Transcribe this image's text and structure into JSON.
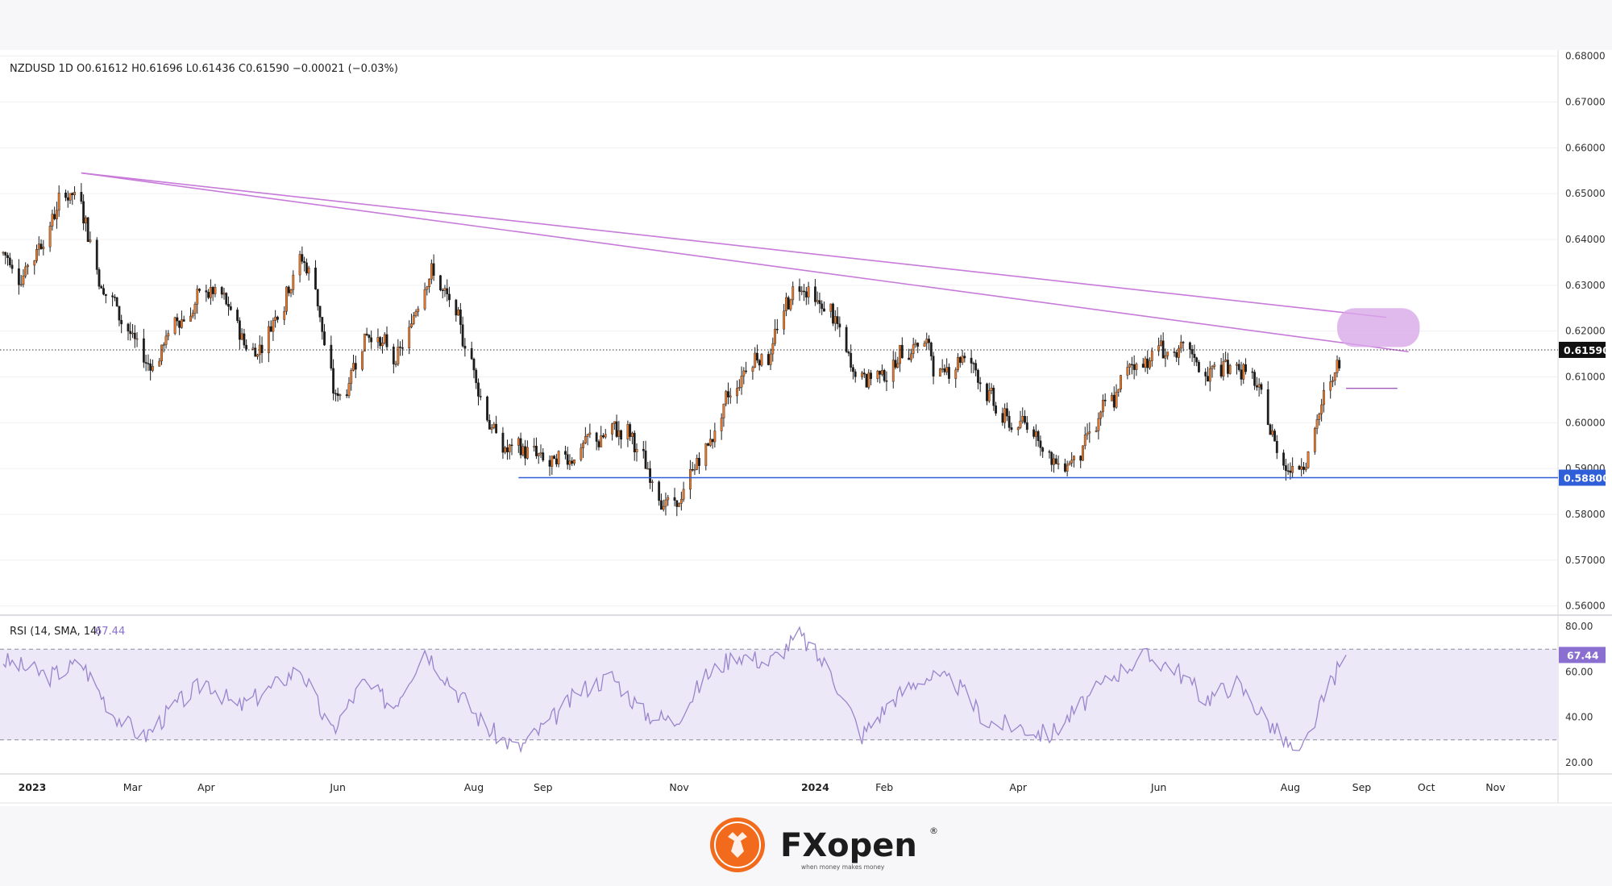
{
  "header": {
    "symbol": "NZDUSD",
    "interval": "1D",
    "open": "O0.61612",
    "high": "H0.61696",
    "low": "L0.61436",
    "close": "C0.61590",
    "change": "−0.00021 (−0.03%)"
  },
  "colors": {
    "up": "#e8782a",
    "down": "#1c1c1c",
    "trendline": "#c77ad9",
    "zone_fill": "#d9a6e8",
    "support": "#2f5ed9",
    "rsi_line": "#9a84cc",
    "rsi_band": "#ece8f8",
    "logo_orange": "#f26a1b"
  },
  "chart_data": {
    "type": "candlestick",
    "y_axis": {
      "ticks": [
        "0.68000",
        "0.67000",
        "0.66000",
        "0.65000",
        "0.64000",
        "0.63000",
        "0.62000",
        "0.61000",
        "0.60000",
        "0.59000",
        "0.58000",
        "0.57000",
        "0.56000"
      ],
      "ylim": [
        0.558,
        0.681
      ]
    },
    "x_axis": {
      "labels": [
        "2023",
        "Mar",
        "Apr",
        "Jun",
        "Aug",
        "Sep",
        "Nov",
        "2024",
        "Feb",
        "Apr",
        "Jun",
        "Aug",
        "Sep",
        "Oct",
        "Nov"
      ],
      "bold_labels": [
        "2023",
        "2024"
      ]
    },
    "price_path": [
      [
        "2023-01-02",
        0.637
      ],
      [
        "2023-01-09",
        0.632
      ],
      [
        "2023-01-16",
        0.638
      ],
      [
        "2023-01-23",
        0.645
      ],
      [
        "2023-01-30",
        0.651
      ],
      [
        "2023-02-06",
        0.647
      ],
      [
        "2023-02-13",
        0.631
      ],
      [
        "2023-02-20",
        0.626
      ],
      [
        "2023-02-27",
        0.619
      ],
      [
        "2023-03-06",
        0.612
      ],
      [
        "2023-03-13",
        0.616
      ],
      [
        "2023-03-20",
        0.623
      ],
      [
        "2023-03-27",
        0.625
      ],
      [
        "2023-04-03",
        0.629
      ],
      [
        "2023-04-10",
        0.626
      ],
      [
        "2023-04-17",
        0.619
      ],
      [
        "2023-04-24",
        0.615
      ],
      [
        "2023-05-01",
        0.622
      ],
      [
        "2023-05-08",
        0.63
      ],
      [
        "2023-05-15",
        0.637
      ],
      [
        "2023-05-22",
        0.628
      ],
      [
        "2023-05-29",
        0.603
      ],
      [
        "2023-06-05",
        0.609
      ],
      [
        "2023-06-12",
        0.621
      ],
      [
        "2023-06-19",
        0.618
      ],
      [
        "2023-06-26",
        0.612
      ],
      [
        "2023-07-03",
        0.621
      ],
      [
        "2023-07-10",
        0.636
      ],
      [
        "2023-07-17",
        0.628
      ],
      [
        "2023-07-24",
        0.621
      ],
      [
        "2023-07-31",
        0.612
      ],
      [
        "2023-08-07",
        0.6
      ],
      [
        "2023-08-14",
        0.593
      ],
      [
        "2023-08-21",
        0.594
      ],
      [
        "2023-08-28",
        0.593
      ],
      [
        "2023-09-04",
        0.59
      ],
      [
        "2023-09-11",
        0.593
      ],
      [
        "2023-09-18",
        0.595
      ],
      [
        "2023-09-25",
        0.596
      ],
      [
        "2023-10-02",
        0.598
      ],
      [
        "2023-10-09",
        0.598
      ],
      [
        "2023-10-16",
        0.589
      ],
      [
        "2023-10-23",
        0.584
      ],
      [
        "2023-10-30",
        0.58
      ],
      [
        "2023-11-06",
        0.59
      ],
      [
        "2023-11-13",
        0.595
      ],
      [
        "2023-11-20",
        0.603
      ],
      [
        "2023-11-27",
        0.61
      ],
      [
        "2023-12-04",
        0.616
      ],
      [
        "2023-12-11",
        0.615
      ],
      [
        "2023-12-18",
        0.626
      ],
      [
        "2023-12-25",
        0.632
      ],
      [
        "2024-01-01",
        0.625
      ],
      [
        "2024-01-08",
        0.624
      ],
      [
        "2024-01-15",
        0.612
      ],
      [
        "2024-01-22",
        0.61
      ],
      [
        "2024-01-29",
        0.611
      ],
      [
        "2024-02-05",
        0.613
      ],
      [
        "2024-02-12",
        0.618
      ],
      [
        "2024-02-19",
        0.617
      ],
      [
        "2024-02-26",
        0.609
      ],
      [
        "2024-03-04",
        0.616
      ],
      [
        "2024-03-11",
        0.613
      ],
      [
        "2024-03-18",
        0.606
      ],
      [
        "2024-03-25",
        0.6
      ],
      [
        "2024-04-01",
        0.599
      ],
      [
        "2024-04-08",
        0.6
      ],
      [
        "2024-04-15",
        0.59
      ],
      [
        "2024-04-22",
        0.592
      ],
      [
        "2024-04-29",
        0.595
      ],
      [
        "2024-05-06",
        0.601
      ],
      [
        "2024-05-13",
        0.604
      ],
      [
        "2024-05-20",
        0.613
      ],
      [
        "2024-05-27",
        0.614
      ],
      [
        "2024-06-03",
        0.617
      ],
      [
        "2024-06-10",
        0.614
      ],
      [
        "2024-06-17",
        0.614
      ],
      [
        "2024-06-24",
        0.61
      ],
      [
        "2024-07-01",
        0.612
      ],
      [
        "2024-07-08",
        0.613
      ],
      [
        "2024-07-15",
        0.608
      ],
      [
        "2024-07-22",
        0.598
      ],
      [
        "2024-07-29",
        0.59
      ],
      [
        "2024-08-05",
        0.592
      ],
      [
        "2024-08-12",
        0.6
      ],
      [
        "2024-08-19",
        0.61
      ],
      [
        "2024-08-26",
        0.616
      ]
    ],
    "last_price": "0.61590",
    "support_level": "0.58800",
    "rsi": {
      "title": "RSI (14, SMA, 14)",
      "value": "67.44",
      "ticks": [
        "80.00",
        "60.00",
        "40.00",
        "20.00"
      ],
      "ylim": [
        15,
        85
      ],
      "levels": [
        70,
        30
      ],
      "path": [
        [
          "2023-01-02",
          65
        ],
        [
          "2023-01-23",
          58
        ],
        [
          "2023-02-06",
          64
        ],
        [
          "2023-02-20",
          42
        ],
        [
          "2023-03-06",
          31
        ],
        [
          "2023-03-20",
          45
        ],
        [
          "2023-04-03",
          56
        ],
        [
          "2023-04-17",
          44
        ],
        [
          "2023-05-01",
          52
        ],
        [
          "2023-05-15",
          62
        ],
        [
          "2023-05-29",
          33
        ],
        [
          "2023-06-12",
          55
        ],
        [
          "2023-06-26",
          45
        ],
        [
          "2023-07-10",
          70
        ],
        [
          "2023-07-24",
          52
        ],
        [
          "2023-08-07",
          35
        ],
        [
          "2023-08-21",
          26
        ],
        [
          "2023-09-04",
          38
        ],
        [
          "2023-09-18",
          52
        ],
        [
          "2023-10-02",
          58
        ],
        [
          "2023-10-16",
          42
        ],
        [
          "2023-10-30",
          38
        ],
        [
          "2023-11-13",
          58
        ],
        [
          "2023-11-27",
          68
        ],
        [
          "2023-12-11",
          64
        ],
        [
          "2023-12-25",
          76
        ],
        [
          "2024-01-08",
          60
        ],
        [
          "2024-01-22",
          32
        ],
        [
          "2024-02-05",
          48
        ],
        [
          "2024-02-19",
          58
        ],
        [
          "2024-03-04",
          55
        ],
        [
          "2024-03-18",
          38
        ],
        [
          "2024-04-01",
          36
        ],
        [
          "2024-04-15",
          32
        ],
        [
          "2024-04-29",
          45
        ],
        [
          "2024-05-13",
          58
        ],
        [
          "2024-05-27",
          67
        ],
        [
          "2024-06-10",
          62
        ],
        [
          "2024-06-24",
          48
        ],
        [
          "2024-07-08",
          55
        ],
        [
          "2024-07-22",
          38
        ],
        [
          "2024-08-05",
          22
        ],
        [
          "2024-08-19",
          55
        ],
        [
          "2024-08-26",
          67.44
        ]
      ]
    }
  },
  "logo": {
    "brand": "FXopen",
    "tagline": "when money makes money",
    "registered": "®"
  }
}
